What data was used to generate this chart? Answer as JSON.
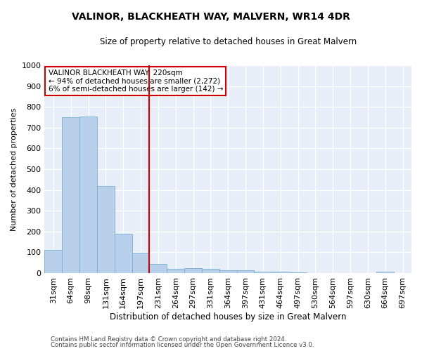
{
  "title": "VALINOR, BLACKHEATH WAY, MALVERN, WR14 4DR",
  "subtitle": "Size of property relative to detached houses in Great Malvern",
  "xlabel": "Distribution of detached houses by size in Great Malvern",
  "ylabel": "Number of detached properties",
  "categories": [
    "31sqm",
    "64sqm",
    "98sqm",
    "131sqm",
    "164sqm",
    "197sqm",
    "231sqm",
    "264sqm",
    "297sqm",
    "331sqm",
    "364sqm",
    "397sqm",
    "431sqm",
    "464sqm",
    "497sqm",
    "530sqm",
    "564sqm",
    "597sqm",
    "630sqm",
    "664sqm",
    "697sqm"
  ],
  "values": [
    112,
    750,
    755,
    420,
    190,
    97,
    45,
    20,
    23,
    20,
    13,
    13,
    5,
    5,
    3,
    0,
    0,
    0,
    0,
    8,
    0
  ],
  "bar_color": "#b8d0ea",
  "bar_edgecolor": "#7aadd4",
  "vline_pos": 5.5,
  "vline_color": "#cc0000",
  "ylim": [
    0,
    1000
  ],
  "yticks": [
    0,
    100,
    200,
    300,
    400,
    500,
    600,
    700,
    800,
    900,
    1000
  ],
  "grid_color": "#ffffff",
  "bg_color": "#e8eef8",
  "annotation_line1": "VALINOR BLACKHEATH WAY: 220sqm",
  "annotation_line2": "← 94% of detached houses are smaller (2,272)",
  "annotation_line3": "6% of semi-detached houses are larger (142) →",
  "annotation_box_edgecolor": "#cc0000",
  "footer1": "Contains HM Land Registry data © Crown copyright and database right 2024.",
  "footer2": "Contains public sector information licensed under the Open Government Licence v3.0."
}
